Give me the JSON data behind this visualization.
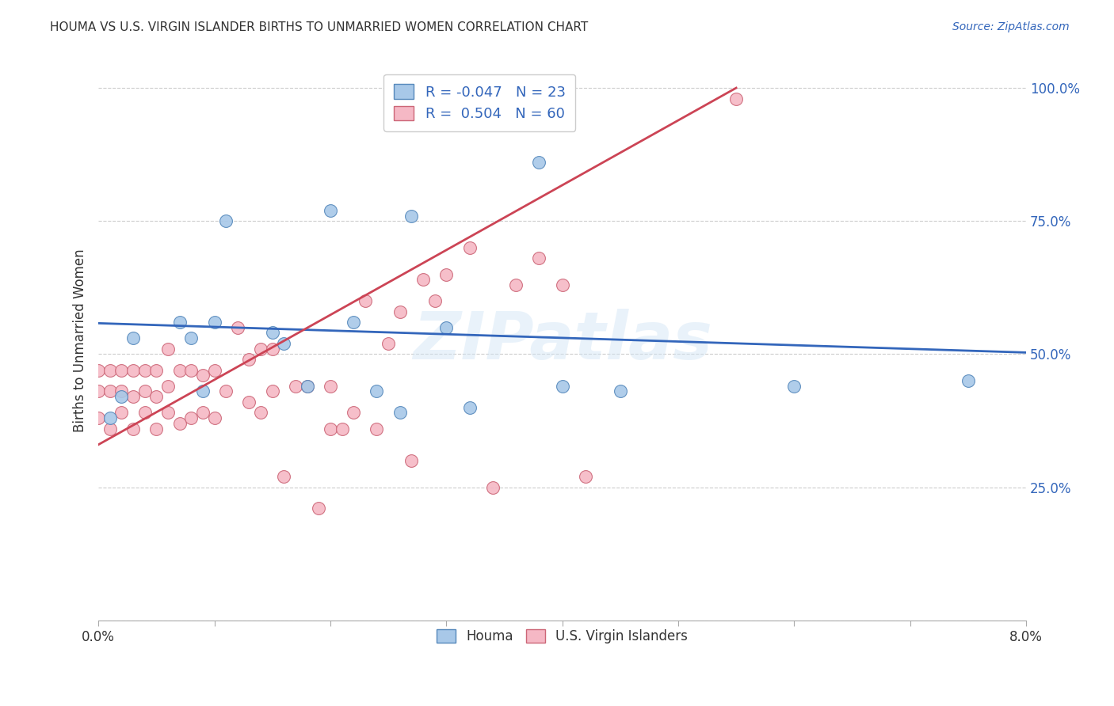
{
  "title": "HOUMA VS U.S. VIRGIN ISLANDER BIRTHS TO UNMARRIED WOMEN CORRELATION CHART",
  "source": "Source: ZipAtlas.com",
  "ylabel": "Births to Unmarried Women",
  "xmin": 0.0,
  "xmax": 0.08,
  "ymin": 0.0,
  "ymax": 1.05,
  "yticks": [
    0.0,
    0.25,
    0.5,
    0.75,
    1.0
  ],
  "ytick_labels": [
    "",
    "25.0%",
    "50.0%",
    "75.0%",
    "100.0%"
  ],
  "watermark": "ZIPatlas",
  "houma_color": "#a8c8e8",
  "houma_edge": "#5588bb",
  "virgin_color": "#f5b8c5",
  "virgin_edge": "#cc6677",
  "trend_houma_color": "#3366bb",
  "trend_virgin_color": "#cc4455",
  "houma_points_x": [
    0.001,
    0.002,
    0.003,
    0.007,
    0.008,
    0.009,
    0.01,
    0.011,
    0.015,
    0.016,
    0.018,
    0.02,
    0.022,
    0.024,
    0.026,
    0.027,
    0.03,
    0.032,
    0.038,
    0.04,
    0.045,
    0.06,
    0.075
  ],
  "houma_points_y": [
    0.38,
    0.42,
    0.53,
    0.56,
    0.53,
    0.43,
    0.56,
    0.75,
    0.54,
    0.52,
    0.44,
    0.77,
    0.56,
    0.43,
    0.39,
    0.76,
    0.55,
    0.4,
    0.86,
    0.44,
    0.43,
    0.44,
    0.45
  ],
  "virgin_points_x": [
    0.0,
    0.0,
    0.0,
    0.001,
    0.001,
    0.001,
    0.002,
    0.002,
    0.002,
    0.003,
    0.003,
    0.003,
    0.004,
    0.004,
    0.004,
    0.005,
    0.005,
    0.005,
    0.006,
    0.006,
    0.006,
    0.007,
    0.007,
    0.008,
    0.008,
    0.009,
    0.009,
    0.01,
    0.01,
    0.011,
    0.012,
    0.013,
    0.013,
    0.014,
    0.014,
    0.015,
    0.015,
    0.016,
    0.017,
    0.018,
    0.019,
    0.02,
    0.02,
    0.021,
    0.022,
    0.023,
    0.024,
    0.025,
    0.026,
    0.027,
    0.028,
    0.029,
    0.03,
    0.032,
    0.034,
    0.036,
    0.038,
    0.04,
    0.042,
    0.055
  ],
  "virgin_points_y": [
    0.38,
    0.43,
    0.47,
    0.36,
    0.43,
    0.47,
    0.39,
    0.43,
    0.47,
    0.36,
    0.42,
    0.47,
    0.39,
    0.43,
    0.47,
    0.36,
    0.42,
    0.47,
    0.39,
    0.44,
    0.51,
    0.37,
    0.47,
    0.38,
    0.47,
    0.39,
    0.46,
    0.38,
    0.47,
    0.43,
    0.55,
    0.41,
    0.49,
    0.39,
    0.51,
    0.43,
    0.51,
    0.27,
    0.44,
    0.44,
    0.21,
    0.36,
    0.44,
    0.36,
    0.39,
    0.6,
    0.36,
    0.52,
    0.58,
    0.3,
    0.64,
    0.6,
    0.65,
    0.7,
    0.25,
    0.63,
    0.68,
    0.63,
    0.27,
    0.98
  ],
  "houma_trend_x0": 0.0,
  "houma_trend_y0": 0.558,
  "houma_trend_x1": 0.08,
  "houma_trend_y1": 0.503,
  "virgin_trend_x0": 0.0,
  "virgin_trend_y0": 0.33,
  "virgin_trend_x1": 0.055,
  "virgin_trend_y1": 1.0,
  "background_color": "#ffffff",
  "grid_color": "#cccccc"
}
